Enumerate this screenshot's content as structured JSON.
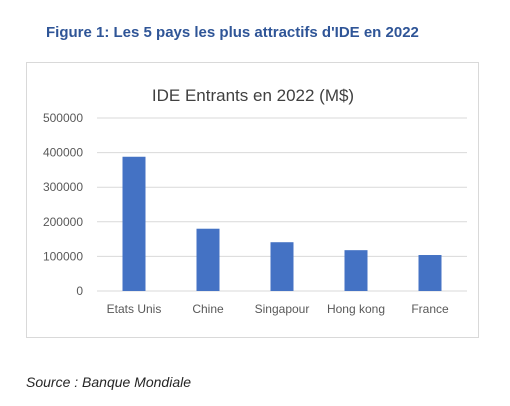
{
  "figure_title": "Figure 1: Les 5 pays les plus attractifs d'IDE en 2022",
  "source_note": "Source : Banque Mondiale",
  "colors": {
    "bar": "#4472c4",
    "title": "#2f5597",
    "grid": "#d9d9d9",
    "text": "#595959"
  },
  "chart_data": {
    "type": "bar",
    "title": "IDE Entrants en 2022 (M$)",
    "categories": [
      "Etats  Unis",
      "Chine",
      "Singapour",
      "Hong kong",
      "France"
    ],
    "values": [
      388000,
      180000,
      141000,
      118000,
      104000
    ],
    "xlabel": "",
    "ylabel": "",
    "ylim": [
      0,
      500000
    ],
    "yticks": [
      0,
      100000,
      200000,
      300000,
      400000,
      500000
    ],
    "grid": true,
    "legend": "none"
  }
}
